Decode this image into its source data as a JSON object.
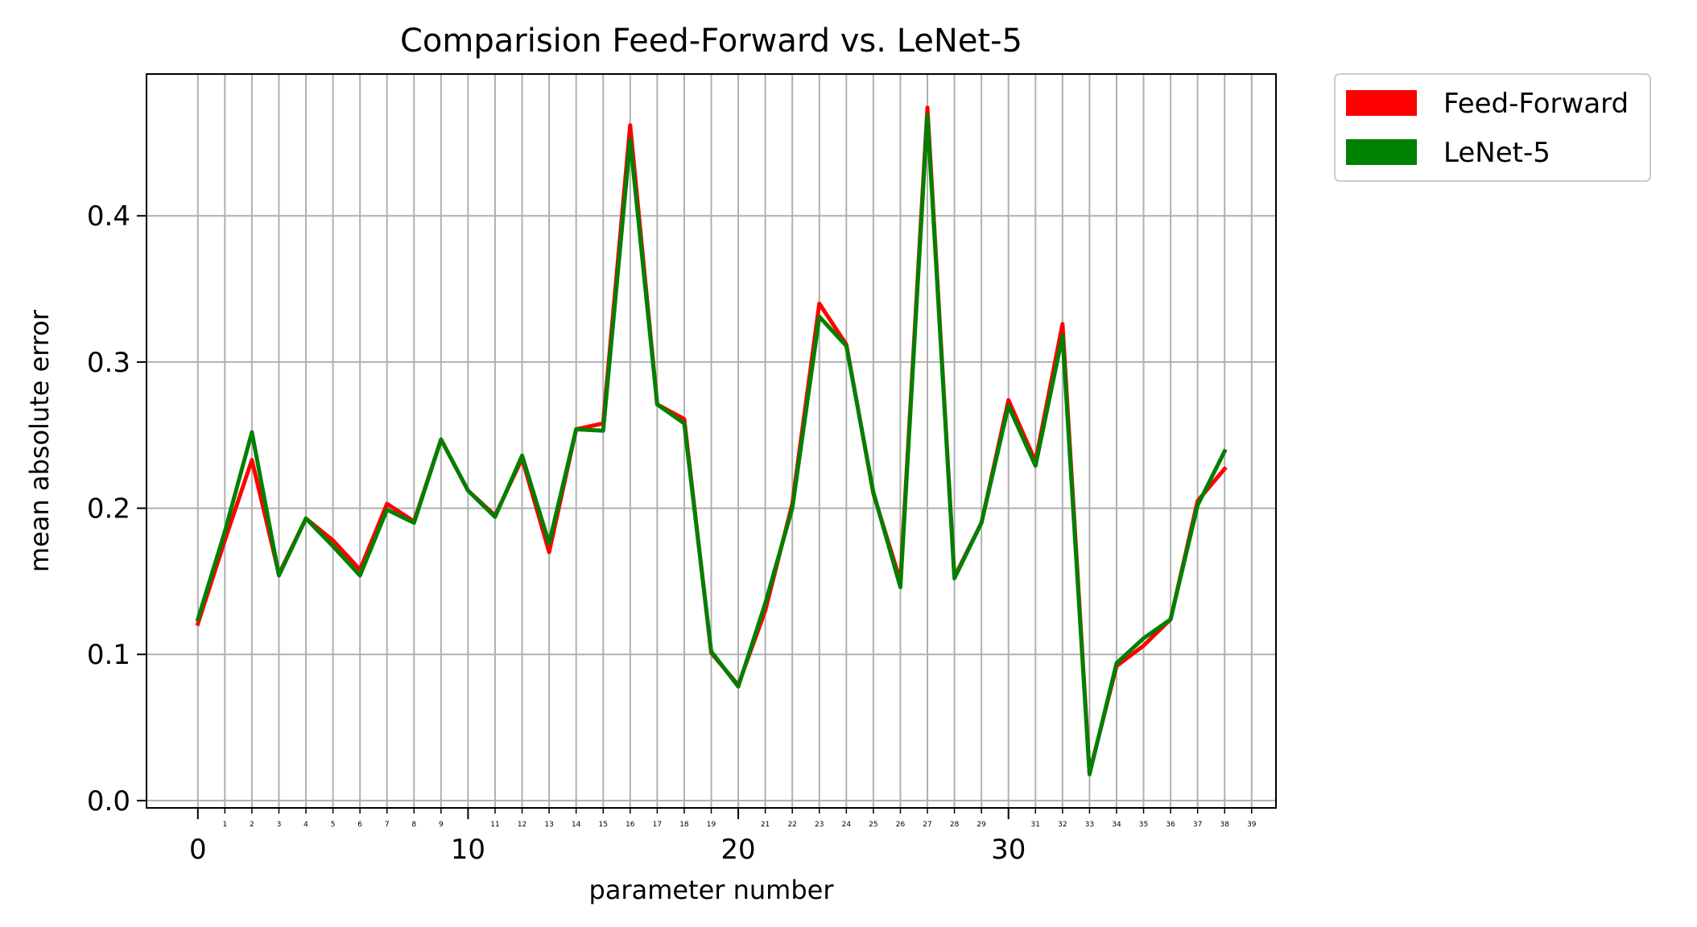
{
  "chart_data": {
    "type": "line",
    "title": "Comparision Feed-Forward vs. LeNet-5",
    "xlabel": "parameter number",
    "ylabel": "mean absolute error",
    "xlim": [
      -1.9,
      39.9
    ],
    "ylim": [
      -0.005,
      0.497
    ],
    "x": [
      0,
      1,
      2,
      3,
      4,
      5,
      6,
      7,
      8,
      9,
      10,
      11,
      12,
      13,
      14,
      15,
      16,
      17,
      18,
      19,
      20,
      21,
      22,
      23,
      24,
      25,
      26,
      27,
      28,
      29,
      30,
      31,
      32,
      33,
      34,
      35,
      36,
      37,
      38
    ],
    "major_xticks": [
      0,
      10,
      20,
      30
    ],
    "minor_xticks": [
      1,
      2,
      3,
      4,
      5,
      6,
      7,
      8,
      9,
      11,
      12,
      13,
      14,
      15,
      16,
      17,
      18,
      19,
      21,
      22,
      23,
      24,
      25,
      26,
      27,
      28,
      29,
      31,
      32,
      33,
      34,
      35,
      36,
      37,
      38,
      39
    ],
    "yticks": [
      0.0,
      0.1,
      0.2,
      0.3,
      0.4
    ],
    "ytick_labels": [
      "0.0",
      "0.1",
      "0.2",
      "0.3",
      "0.4"
    ],
    "grid": true,
    "legend_position": "outside-top-right",
    "series": [
      {
        "name": "Feed-Forward",
        "color": "#ff0000",
        "values": [
          0.121,
          0.178,
          0.233,
          0.155,
          0.193,
          0.178,
          0.158,
          0.203,
          0.191,
          0.247,
          0.212,
          0.195,
          0.234,
          0.17,
          0.254,
          0.258,
          0.462,
          0.271,
          0.261,
          0.101,
          0.079,
          0.13,
          0.203,
          0.34,
          0.312,
          0.21,
          0.15,
          0.474,
          0.153,
          0.19,
          0.274,
          0.232,
          0.326,
          0.019,
          0.092,
          0.106,
          0.124,
          0.205,
          0.227
        ]
      },
      {
        "name": "LeNet-5",
        "color": "#008000",
        "values": [
          0.124,
          0.184,
          0.252,
          0.154,
          0.193,
          0.174,
          0.154,
          0.199,
          0.19,
          0.247,
          0.212,
          0.194,
          0.236,
          0.176,
          0.254,
          0.253,
          0.452,
          0.271,
          0.258,
          0.102,
          0.078,
          0.135,
          0.2,
          0.331,
          0.311,
          0.211,
          0.146,
          0.469,
          0.152,
          0.19,
          0.27,
          0.229,
          0.318,
          0.018,
          0.094,
          0.111,
          0.124,
          0.202,
          0.239
        ]
      }
    ]
  }
}
